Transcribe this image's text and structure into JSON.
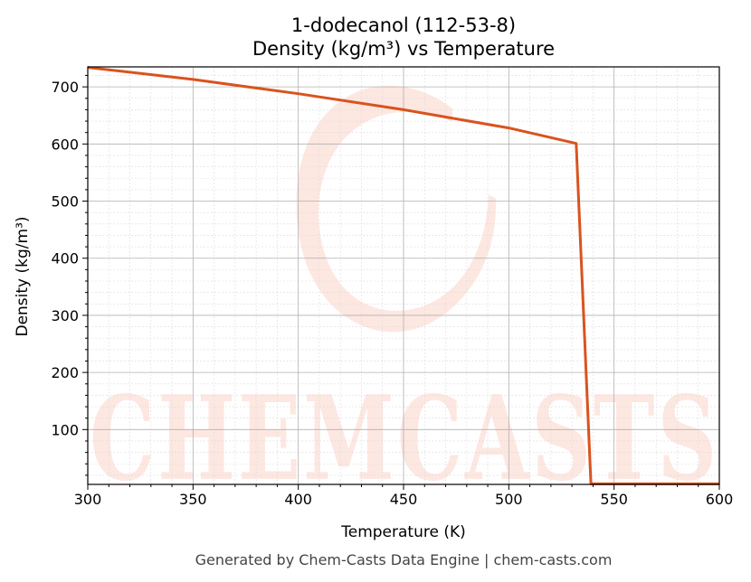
{
  "chart_data": {
    "type": "line",
    "title": "1-dodecanol (112-53-8)",
    "subtitle": "Density (kg/m³) vs Temperature",
    "xlabel": "Temperature (K)",
    "ylabel": "Density (kg/m³)",
    "xlim": [
      300,
      600
    ],
    "ylim": [
      4,
      735
    ],
    "x_ticks": [
      300,
      350,
      400,
      450,
      500,
      550,
      600
    ],
    "y_ticks": [
      100,
      200,
      300,
      400,
      500,
      600,
      700
    ],
    "grid": true,
    "legend": "none",
    "series": [
      {
        "color": "#d9531e",
        "x": [
          300,
          350,
          400,
          450,
          500,
          532,
          539,
          545,
          600
        ],
        "y": [
          734,
          713,
          688,
          660,
          628,
          601,
          5,
          5,
          5
        ]
      }
    ]
  },
  "watermark": {
    "text": "CHEMCASTS",
    "color": "#fde3dc"
  },
  "footer": {
    "text": "Generated by Chem-Casts Data Engine | chem-casts.com"
  }
}
